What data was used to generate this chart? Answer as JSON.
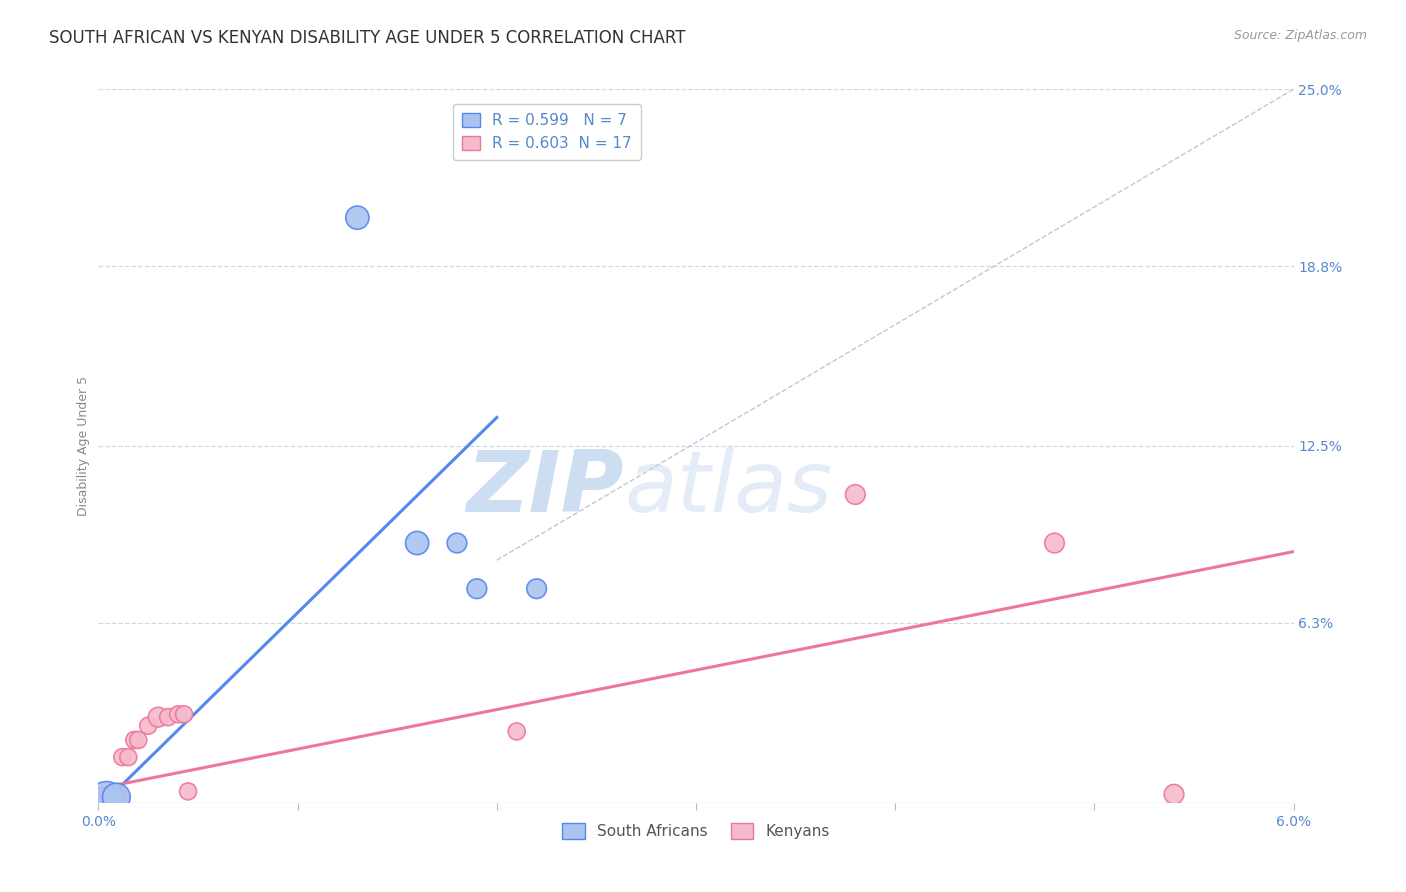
{
  "title": "SOUTH AFRICAN VS KENYAN DISABILITY AGE UNDER 5 CORRELATION CHART",
  "source": "Source: ZipAtlas.com",
  "ylabel": "Disability Age Under 5",
  "xlim": [
    0.0,
    0.06
  ],
  "ylim": [
    0.0,
    0.25
  ],
  "xticks": [
    0.0,
    0.01,
    0.02,
    0.03,
    0.04,
    0.05,
    0.06
  ],
  "xticklabels": [
    "0.0%",
    "",
    "",
    "",
    "",
    "",
    "6.0%"
  ],
  "yticks_right": [
    0.0,
    0.063,
    0.125,
    0.188,
    0.25
  ],
  "yticks_right_labels": [
    "",
    "6.3%",
    "12.5%",
    "18.8%",
    "25.0%"
  ],
  "grid_color": "#d0d8e8",
  "background_color": "#ffffff",
  "sa_color": "#5588ee",
  "sa_color_face": "#aac4f0",
  "kenya_color": "#ee7799",
  "kenya_color_face": "#f5bbcc",
  "sa_R": "0.599",
  "sa_N": "7",
  "kenya_R": "0.603",
  "kenya_N": "17",
  "sa_points_x": [
    0.0004,
    0.0009,
    0.013,
    0.016,
    0.018,
    0.019,
    0.022
  ],
  "sa_points_y": [
    0.001,
    0.002,
    0.205,
    0.091,
    0.091,
    0.075,
    0.075
  ],
  "sa_sizes": [
    700,
    400,
    280,
    280,
    200,
    200,
    200
  ],
  "kenya_points_x": [
    0.0002,
    0.0005,
    0.001,
    0.0012,
    0.0015,
    0.0018,
    0.002,
    0.0025,
    0.003,
    0.0035,
    0.004,
    0.0043,
    0.0045,
    0.021,
    0.038,
    0.048,
    0.054
  ],
  "kenya_points_y": [
    0.001,
    0.002,
    0.002,
    0.016,
    0.016,
    0.022,
    0.022,
    0.027,
    0.03,
    0.03,
    0.031,
    0.031,
    0.004,
    0.025,
    0.108,
    0.091,
    0.003
  ],
  "kenya_sizes": [
    150,
    150,
    200,
    150,
    150,
    150,
    150,
    150,
    200,
    150,
    150,
    150,
    150,
    150,
    200,
    200,
    200
  ],
  "sa_line_x": [
    0.001,
    0.02
  ],
  "sa_line_y": [
    0.005,
    0.135
  ],
  "kenya_line_x": [
    0.0,
    0.06
  ],
  "kenya_line_y": [
    0.005,
    0.088
  ],
  "ref_line_x": [
    0.02,
    0.06
  ],
  "ref_line_y": [
    0.085,
    0.25
  ],
  "watermark_zip": "ZIP",
  "watermark_atlas": "atlas",
  "title_fontsize": 12,
  "label_fontsize": 9,
  "tick_fontsize": 10,
  "legend_fontsize": 11,
  "source_fontsize": 9,
  "tick_color": "#5588cc",
  "axis_label_color": "#888888",
  "legend_text_color": "#5588cc"
}
